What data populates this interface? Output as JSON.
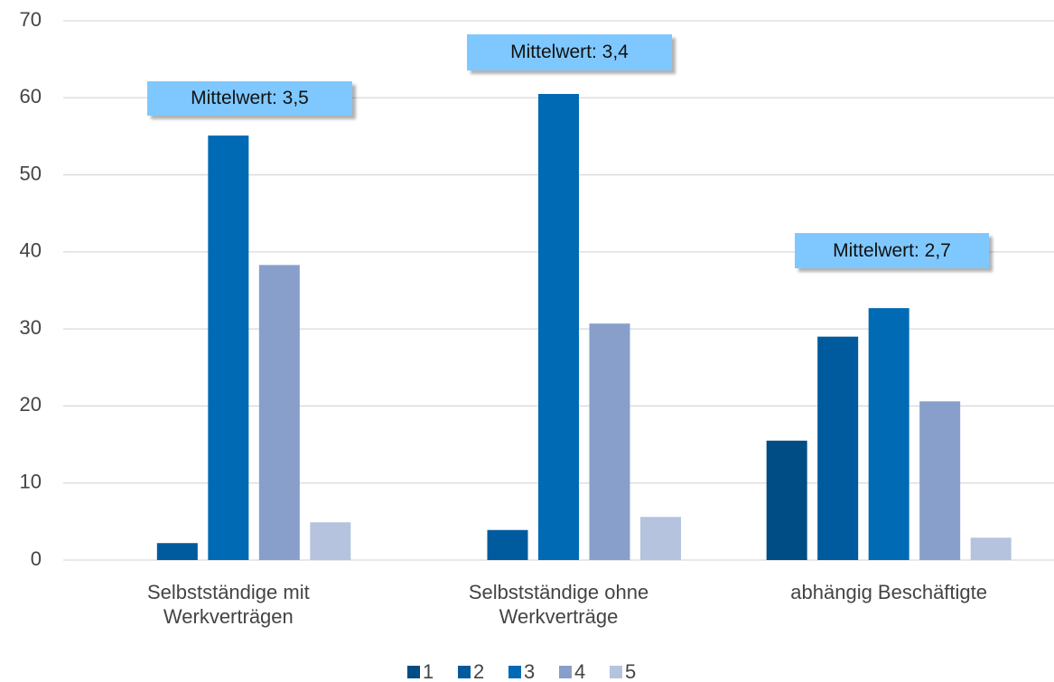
{
  "chart_data": {
    "type": "bar",
    "categories": [
      "Selbstständige mit Werkverträgen",
      "Selbstständige ohne Werkverträge",
      "abhängig Beschäftigte"
    ],
    "series": [
      {
        "name": "1",
        "color": "#004c84",
        "values": [
          0,
          0,
          15.5
        ]
      },
      {
        "name": "2",
        "color": "#005a9e",
        "values": [
          2.2,
          3.9,
          29
        ]
      },
      {
        "name": "3",
        "color": "#006ab4",
        "values": [
          55.1,
          60.5,
          32.7
        ]
      },
      {
        "name": "4",
        "color": "#879fca",
        "values": [
          38.3,
          30.7,
          20.6
        ]
      },
      {
        "name": "5",
        "color": "#b5c3de",
        "values": [
          4.9,
          5.6,
          2.9
        ]
      }
    ],
    "annotations": [
      "Mittelwert: 3,5",
      "Mittelwert: 3,4",
      "Mittelwert: 2,7"
    ],
    "ylim": [
      0,
      70
    ],
    "yticks": [
      0,
      10,
      20,
      30,
      40,
      50,
      60,
      70
    ],
    "grid": true,
    "legend": "bottom"
  }
}
